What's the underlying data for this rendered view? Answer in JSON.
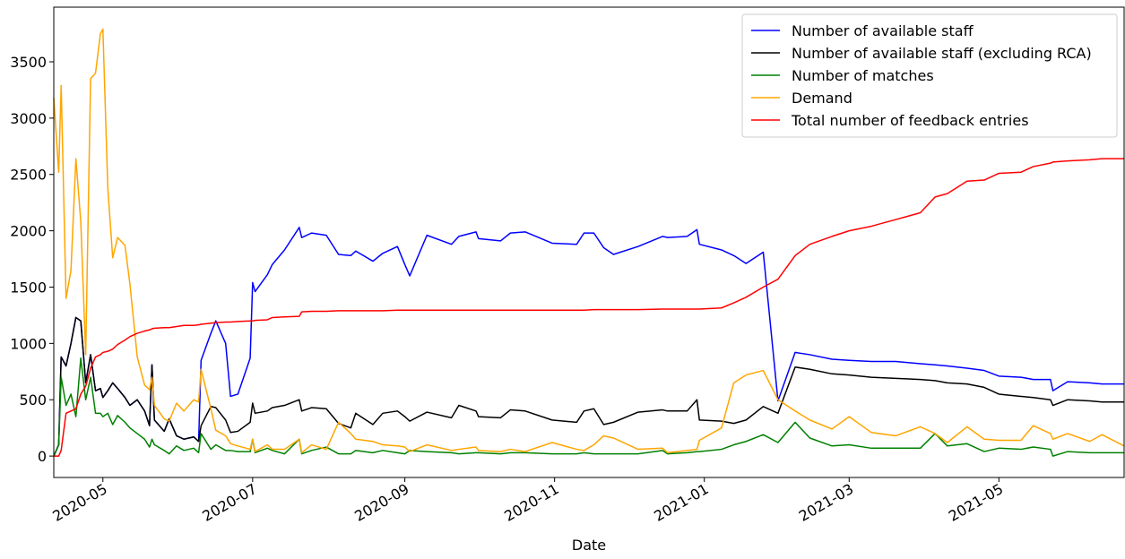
{
  "chart_data": {
    "type": "line",
    "x_label": "Date",
    "x": [
      "2020-04-11",
      "2020-04-13",
      "2020-04-14",
      "2020-04-16",
      "2020-04-18",
      "2020-04-20",
      "2020-04-22",
      "2020-04-24",
      "2020-04-26",
      "2020-04-28",
      "2020-04-30",
      "2020-05-01",
      "2020-05-03",
      "2020-05-05",
      "2020-05-07",
      "2020-05-10",
      "2020-05-12",
      "2020-05-15",
      "2020-05-18",
      "2020-05-20",
      "2020-05-21",
      "2020-05-22",
      "2020-05-26",
      "2020-05-28",
      "2020-05-31",
      "2020-06-03",
      "2020-06-07",
      "2020-06-09",
      "2020-06-10",
      "2020-06-14",
      "2020-06-16",
      "2020-06-20",
      "2020-06-22",
      "2020-06-25",
      "2020-06-30",
      "2020-07-01",
      "2020-07-02",
      "2020-07-07",
      "2020-07-09",
      "2020-07-14",
      "2020-07-20",
      "2020-07-21",
      "2020-07-25",
      "2020-07-31",
      "2020-08-05",
      "2020-08-10",
      "2020-08-12",
      "2020-08-19",
      "2020-08-23",
      "2020-08-29",
      "2020-09-01",
      "2020-09-03",
      "2020-09-10",
      "2020-09-20",
      "2020-09-23",
      "2020-09-30",
      "2020-10-01",
      "2020-10-10",
      "2020-10-14",
      "2020-10-20",
      "2020-10-31",
      "2020-11-10",
      "2020-11-13",
      "2020-11-17",
      "2020-11-21",
      "2020-11-25",
      "2020-12-05",
      "2020-12-15",
      "2020-12-17",
      "2020-12-25",
      "2020-12-29",
      "2020-12-30",
      "2021-01-08",
      "2021-01-13",
      "2021-01-18",
      "2021-01-25",
      "2021-01-31",
      "2021-02-07",
      "2021-02-13",
      "2021-02-22",
      "2021-03-01",
      "2021-03-10",
      "2021-03-20",
      "2021-03-30",
      "2021-04-05",
      "2021-04-10",
      "2021-04-18",
      "2021-04-25",
      "2021-05-01",
      "2021-05-10",
      "2021-05-15",
      "2021-05-22",
      "2021-05-23",
      "2021-05-29",
      "2021-06-07",
      "2021-06-12",
      "2021-06-21"
    ],
    "xlim": [
      "2020-04-11",
      "2021-06-21"
    ],
    "xticks": [
      {
        "value": "2020-05-01",
        "label": "2020-05"
      },
      {
        "value": "2020-07-01",
        "label": "2020-07"
      },
      {
        "value": "2020-09-01",
        "label": "2020-09"
      },
      {
        "value": "2020-11-01",
        "label": "2020-11"
      },
      {
        "value": "2021-01-01",
        "label": "2021-01"
      },
      {
        "value": "2021-03-01",
        "label": "2021-03"
      },
      {
        "value": "2021-05-01",
        "label": "2021-05"
      }
    ],
    "ylim": [
      -190,
      3985
    ],
    "yticks": [
      0,
      500,
      1000,
      1500,
      2000,
      2500,
      3000,
      3500
    ],
    "legend": "upper right",
    "series": [
      {
        "name": "Number of available staff",
        "color": "#0000ff",
        "values": [
          0,
          100,
          880,
          800,
          1000,
          1230,
          1200,
          650,
          900,
          580,
          600,
          520,
          580,
          650,
          600,
          520,
          450,
          500,
          400,
          270,
          810,
          320,
          220,
          330,
          180,
          150,
          170,
          130,
          850,
          1090,
          1200,
          1000,
          530,
          550,
          870,
          1540,
          1460,
          1610,
          1700,
          1830,
          2030,
          1940,
          1980,
          1960,
          1790,
          1780,
          1820,
          1730,
          1800,
          1860,
          1700,
          1600,
          1960,
          1880,
          1950,
          1990,
          1930,
          1910,
          1980,
          1990,
          1890,
          1880,
          1980,
          1980,
          1850,
          1790,
          1860,
          1950,
          1940,
          1950,
          2010,
          1880,
          1830,
          1780,
          1710,
          1810,
          490,
          920,
          900,
          860,
          850,
          840,
          840,
          820,
          810,
          800,
          780,
          760,
          710,
          700,
          680,
          680,
          580,
          660,
          650,
          640,
          640
        ]
      },
      {
        "name": "Number of available staff (excluding RCA)",
        "color": "#000000",
        "values": [
          0,
          100,
          880,
          800,
          1000,
          1230,
          1200,
          650,
          900,
          580,
          600,
          520,
          580,
          650,
          600,
          520,
          450,
          500,
          400,
          270,
          810,
          320,
          220,
          330,
          180,
          150,
          170,
          130,
          270,
          440,
          430,
          320,
          210,
          220,
          300,
          470,
          380,
          400,
          430,
          450,
          500,
          400,
          430,
          420,
          290,
          250,
          380,
          280,
          380,
          400,
          350,
          310,
          390,
          340,
          450,
          400,
          350,
          340,
          410,
          400,
          320,
          300,
          400,
          420,
          280,
          300,
          390,
          410,
          400,
          400,
          500,
          320,
          310,
          290,
          320,
          440,
          380,
          790,
          770,
          730,
          720,
          700,
          690,
          680,
          670,
          650,
          640,
          610,
          550,
          530,
          520,
          500,
          450,
          500,
          490,
          480,
          480
        ]
      },
      {
        "name": "Number of matches",
        "color": "#008000",
        "values": [
          0,
          100,
          700,
          450,
          550,
          350,
          870,
          500,
          700,
          380,
          380,
          350,
          380,
          280,
          360,
          300,
          250,
          200,
          150,
          80,
          150,
          100,
          50,
          20,
          90,
          50,
          70,
          30,
          200,
          60,
          100,
          50,
          50,
          40,
          40,
          150,
          30,
          70,
          50,
          20,
          150,
          20,
          50,
          80,
          20,
          20,
          50,
          30,
          50,
          30,
          20,
          50,
          40,
          30,
          20,
          30,
          30,
          20,
          30,
          30,
          20,
          20,
          30,
          20,
          20,
          20,
          20,
          50,
          20,
          30,
          40,
          40,
          60,
          100,
          130,
          190,
          120,
          300,
          160,
          90,
          100,
          70,
          70,
          70,
          200,
          90,
          110,
          40,
          70,
          60,
          80,
          60,
          0,
          40,
          30,
          30,
          30
        ]
      },
      {
        "name": "Demand",
        "color": "#ffa500",
        "values": [
          3180,
          2520,
          3290,
          1400,
          1650,
          2640,
          2080,
          900,
          3350,
          3400,
          3750,
          3790,
          2380,
          1760,
          1940,
          1870,
          1530,
          880,
          630,
          590,
          700,
          450,
          330,
          310,
          470,
          400,
          500,
          480,
          770,
          420,
          230,
          180,
          110,
          90,
          60,
          150,
          40,
          100,
          60,
          60,
          150,
          30,
          100,
          60,
          300,
          200,
          150,
          130,
          100,
          90,
          80,
          40,
          100,
          50,
          60,
          80,
          50,
          40,
          60,
          40,
          120,
          60,
          50,
          100,
          180,
          160,
          60,
          70,
          30,
          50,
          60,
          140,
          250,
          650,
          720,
          760,
          500,
          400,
          320,
          240,
          350,
          210,
          180,
          260,
          200,
          120,
          260,
          150,
          140,
          140,
          270,
          200,
          150,
          200,
          130,
          190,
          90
        ]
      },
      {
        "name": "Total number of feedback entries",
        "color": "#ff0000",
        "values": [
          0,
          0,
          50,
          380,
          400,
          420,
          550,
          620,
          780,
          880,
          900,
          920,
          930,
          950,
          990,
          1030,
          1060,
          1090,
          1110,
          1120,
          1130,
          1135,
          1140,
          1140,
          1150,
          1160,
          1160,
          1165,
          1170,
          1180,
          1185,
          1190,
          1190,
          1195,
          1200,
          1200,
          1205,
          1210,
          1230,
          1235,
          1240,
          1280,
          1285,
          1285,
          1290,
          1290,
          1290,
          1290,
          1290,
          1295,
          1295,
          1295,
          1295,
          1295,
          1295,
          1295,
          1295,
          1295,
          1295,
          1295,
          1295,
          1295,
          1295,
          1300,
          1300,
          1300,
          1300,
          1305,
          1305,
          1305,
          1305,
          1305,
          1315,
          1360,
          1410,
          1500,
          1570,
          1780,
          1880,
          1950,
          2000,
          2040,
          2100,
          2160,
          2300,
          2330,
          2440,
          2450,
          2510,
          2520,
          2570,
          2600,
          2610,
          2620,
          2630,
          2640,
          2640
        ]
      }
    ]
  }
}
